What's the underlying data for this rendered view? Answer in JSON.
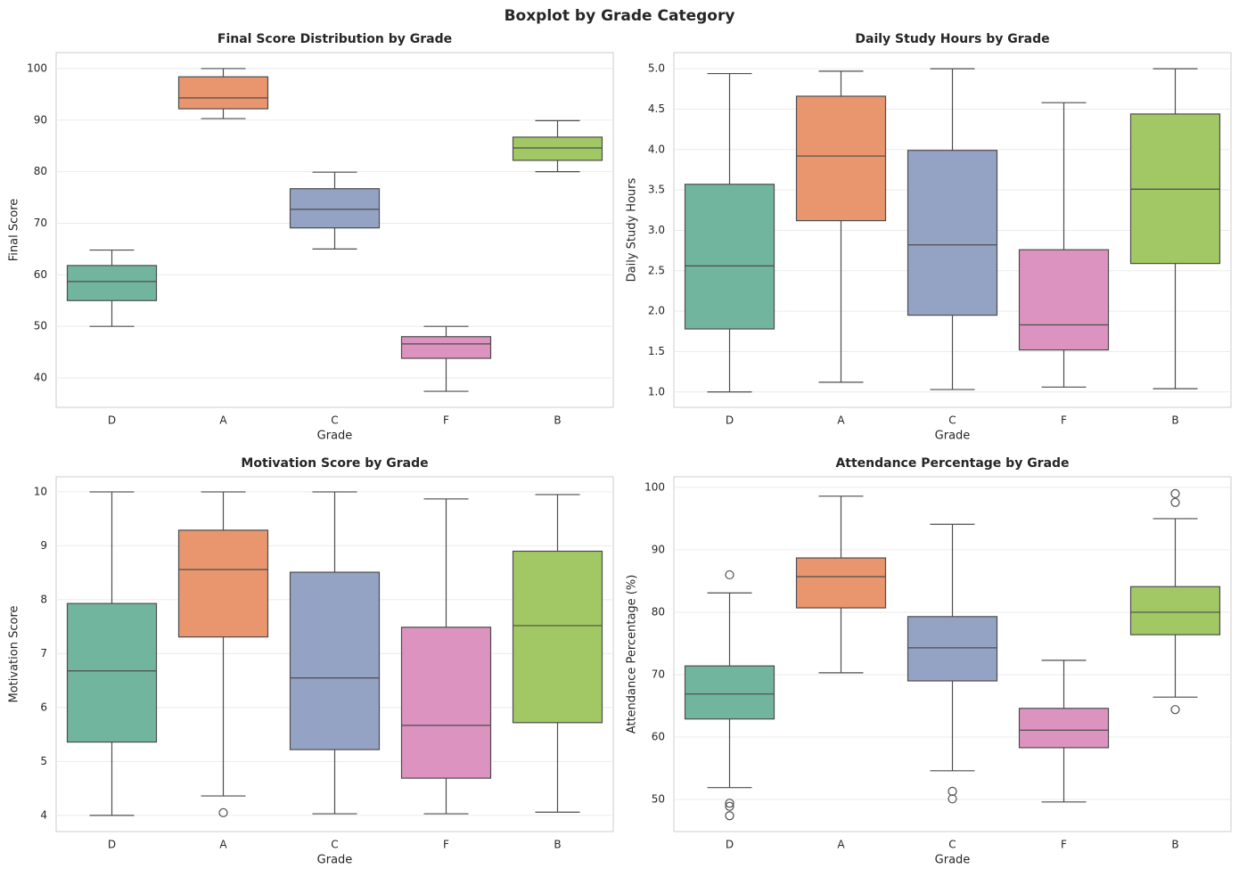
{
  "title": "Boxplot by Grade Category",
  "chart_data": [
    {
      "type": "box",
      "title": "Final Score Distribution by Grade",
      "xlabel": "Grade",
      "ylabel": "Final Score",
      "categories": [
        "D",
        "A",
        "C",
        "F",
        "B"
      ],
      "colors": [
        "#72b59f",
        "#e9966f",
        "#94a3c3",
        "#dc93bf",
        "#a1c864"
      ],
      "boxes": [
        {
          "whislo": 50,
          "q1": 55,
          "median": 58.7,
          "q3": 61.8,
          "whishi": 64.8,
          "fliers": []
        },
        {
          "whislo": 90.3,
          "q1": 92.2,
          "median": 94.3,
          "q3": 98.4,
          "whishi": 100,
          "fliers": []
        },
        {
          "whislo": 65,
          "q1": 69.1,
          "median": 72.7,
          "q3": 76.7,
          "whishi": 79.9,
          "fliers": []
        },
        {
          "whislo": 37.4,
          "q1": 43.8,
          "median": 46.6,
          "q3": 48,
          "whishi": 50,
          "fliers": []
        },
        {
          "whislo": 80,
          "q1": 82.2,
          "median": 84.6,
          "q3": 86.7,
          "whishi": 89.9,
          "fliers": []
        }
      ],
      "ylim": [
        34.3,
        103.1
      ],
      "yticks": [
        40,
        50,
        60,
        70,
        80,
        90,
        100
      ],
      "grid": true
    },
    {
      "type": "box",
      "title": "Daily Study Hours by Grade",
      "xlabel": "Grade",
      "ylabel": "Daily Study Hours",
      "categories": [
        "D",
        "A",
        "C",
        "F",
        "B"
      ],
      "colors": [
        "#72b59f",
        "#e9966f",
        "#94a3c3",
        "#dc93bf",
        "#a1c864"
      ],
      "boxes": [
        {
          "whislo": 1.0,
          "q1": 1.78,
          "median": 2.56,
          "q3": 3.57,
          "whishi": 4.94,
          "fliers": []
        },
        {
          "whislo": 1.12,
          "q1": 3.12,
          "median": 3.92,
          "q3": 4.66,
          "whishi": 4.97,
          "fliers": []
        },
        {
          "whislo": 1.03,
          "q1": 1.95,
          "median": 2.82,
          "q3": 3.99,
          "whishi": 5.0,
          "fliers": []
        },
        {
          "whislo": 1.06,
          "q1": 1.52,
          "median": 1.83,
          "q3": 2.76,
          "whishi": 4.58,
          "fliers": []
        },
        {
          "whislo": 1.04,
          "q1": 2.59,
          "median": 3.51,
          "q3": 4.44,
          "whishi": 5.0,
          "fliers": []
        }
      ],
      "ylim": [
        0.81,
        5.2
      ],
      "yticks": [
        {
          "value": 1,
          "label": "1.0"
        },
        1.5,
        {
          "value": 2,
          "label": "2.0"
        },
        2.5,
        {
          "value": 3,
          "label": "3.0"
        },
        3.5,
        {
          "value": 4,
          "label": "4.0"
        },
        4.5,
        {
          "value": 5,
          "label": "5.0"
        }
      ],
      "grid": true
    },
    {
      "type": "box",
      "title": "Motivation Score by Grade",
      "xlabel": "Grade",
      "ylabel": "Motivation Score",
      "categories": [
        "D",
        "A",
        "C",
        "F",
        "B"
      ],
      "colors": [
        "#72b59f",
        "#e9966f",
        "#94a3c3",
        "#dc93bf",
        "#a1c864"
      ],
      "boxes": [
        {
          "whislo": 4.0,
          "q1": 5.36,
          "median": 6.68,
          "q3": 7.93,
          "whishi": 10,
          "fliers": []
        },
        {
          "whislo": 4.36,
          "q1": 7.31,
          "median": 8.56,
          "q3": 9.29,
          "whishi": 10,
          "fliers": [
            4.05
          ]
        },
        {
          "whislo": 4.03,
          "q1": 5.22,
          "median": 6.55,
          "q3": 8.51,
          "whishi": 10,
          "fliers": []
        },
        {
          "whislo": 4.03,
          "q1": 4.69,
          "median": 5.67,
          "q3": 7.49,
          "whishi": 9.87,
          "fliers": []
        },
        {
          "whislo": 4.06,
          "q1": 5.72,
          "median": 7.52,
          "q3": 8.9,
          "whishi": 9.95,
          "fliers": []
        }
      ],
      "ylim": [
        3.7,
        10.28
      ],
      "yticks": [
        4,
        5,
        6,
        7,
        8,
        9,
        10
      ],
      "grid": true
    },
    {
      "type": "box",
      "title": "Attendance Percentage by Grade",
      "xlabel": "Grade",
      "ylabel": "Attendance Percentage (%)",
      "categories": [
        "D",
        "A",
        "C",
        "F",
        "B"
      ],
      "colors": [
        "#72b59f",
        "#e9966f",
        "#94a3c3",
        "#dc93bf",
        "#a1c864"
      ],
      "boxes": [
        {
          "whislo": 51.9,
          "q1": 62.9,
          "median": 66.9,
          "q3": 71.4,
          "whishi": 83.1,
          "fliers": [
            86,
            49.4,
            48.9,
            47.4
          ]
        },
        {
          "whislo": 70.3,
          "q1": 80.7,
          "median": 85.7,
          "q3": 88.7,
          "whishi": 98.6,
          "fliers": []
        },
        {
          "whislo": 54.6,
          "q1": 69,
          "median": 74.3,
          "q3": 79.3,
          "whishi": 94.1,
          "fliers": [
            51.3,
            50.1
          ]
        },
        {
          "whislo": 49.6,
          "q1": 58.3,
          "median": 61.1,
          "q3": 64.6,
          "whishi": 72.3,
          "fliers": []
        },
        {
          "whislo": 66.4,
          "q1": 76.4,
          "median": 80,
          "q3": 84.1,
          "whishi": 95,
          "fliers": [
            99,
            97.6,
            64.4
          ]
        }
      ],
      "ylim": [
        44.86,
        101.7
      ],
      "yticks": [
        50,
        60,
        70,
        80,
        90,
        100
      ],
      "grid": true
    }
  ]
}
